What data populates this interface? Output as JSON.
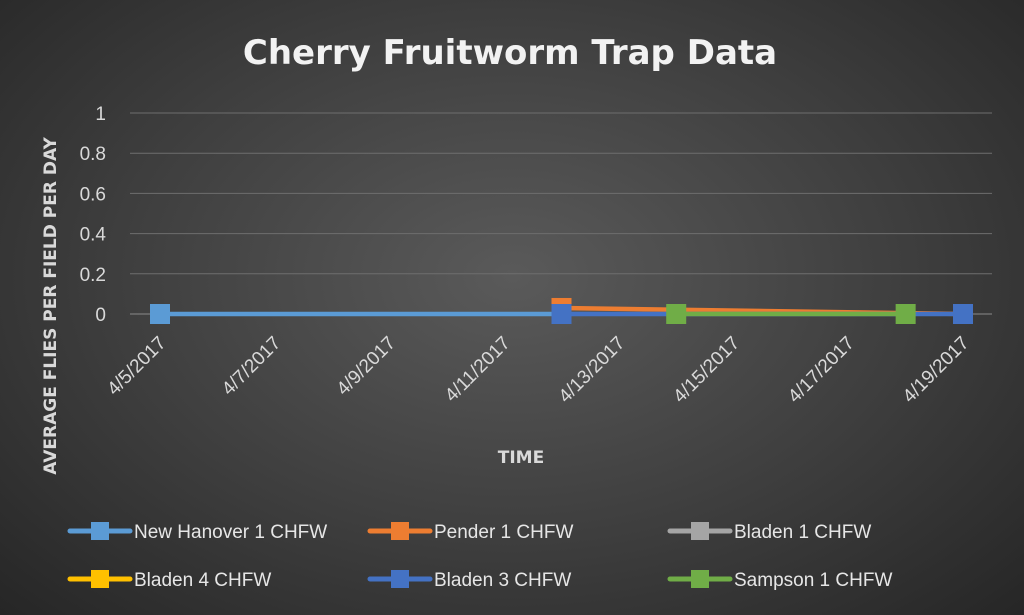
{
  "chart_data": {
    "type": "line",
    "title": "Cherry Fruitworm Trap Data",
    "xlabel": "TIME",
    "ylabel": "AVERAGE FLIES PER FIELD PER DAY",
    "ylim": [
      0,
      1
    ],
    "yticks": [
      "0",
      "0.2",
      "0.4",
      "0.6",
      "0.8",
      "1"
    ],
    "xlim": [
      "4/5/2017",
      "4/19/2017"
    ],
    "xticks": [
      "4/5/2017",
      "4/7/2017",
      "4/9/2017",
      "4/11/2017",
      "4/13/2017",
      "4/15/2017",
      "4/17/2017",
      "4/19/2017"
    ],
    "grid": true,
    "legend_position": "bottom",
    "series": [
      {
        "name": "New Hanover 1 CHFW",
        "color": "#5b9bd5",
        "points": [
          {
            "x": "4/5/2017",
            "y": 0
          },
          {
            "x": "4/12/2017",
            "y": 0
          }
        ]
      },
      {
        "name": "Pender 1 CHFW",
        "color": "#ed7d31",
        "points": [
          {
            "x": "4/12/2017",
            "y": 0.03
          },
          {
            "x": "4/19/2017",
            "y": 0
          }
        ]
      },
      {
        "name": "Bladen 1 CHFW",
        "color": "#a5a5a5",
        "points": []
      },
      {
        "name": "Bladen 4 CHFW",
        "color": "#ffc000",
        "points": []
      },
      {
        "name": "Bladen 3 CHFW",
        "color": "#4472c4",
        "points": [
          {
            "x": "4/12/2017",
            "y": 0
          },
          {
            "x": "4/19/2017",
            "y": 0
          }
        ]
      },
      {
        "name": "Sampson 1 CHFW",
        "color": "#70ad47",
        "points": [
          {
            "x": "4/14/2017",
            "y": 0
          },
          {
            "x": "4/18/2017",
            "y": 0
          }
        ]
      }
    ]
  }
}
